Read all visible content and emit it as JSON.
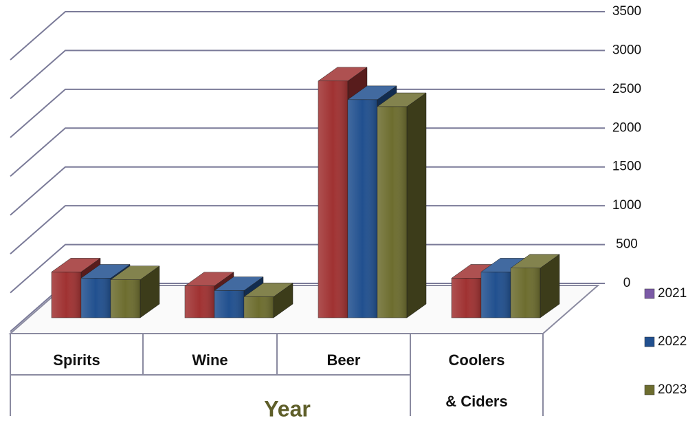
{
  "chart_data": {
    "type": "bar3d",
    "categories": [
      "Spirits",
      "Wine",
      "Beer",
      "Coolers & Ciders"
    ],
    "x_label": "Year",
    "series": [
      {
        "name": "2021",
        "color": "#a03232",
        "legend_color": "#7b5aa6",
        "values": [
          590,
          410,
          3050,
          510
        ]
      },
      {
        "name": "2022",
        "color": "#21508f",
        "legend_color": "#21508f",
        "values": [
          510,
          350,
          2810,
          590
        ]
      },
      {
        "name": "2023",
        "color": "#6d6d2f",
        "legend_color": "#6d6d2f",
        "values": [
          490,
          270,
          2720,
          640
        ]
      }
    ],
    "ylim": [
      0,
      3500
    ],
    "yticks": [
      0,
      500,
      1000,
      1500,
      2000,
      2500,
      3000,
      3500
    ],
    "grid": true,
    "legend": "right"
  }
}
